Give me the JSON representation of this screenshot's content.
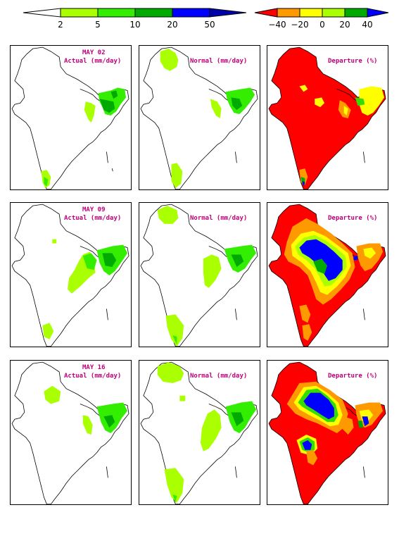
{
  "rainfall_scale": {
    "ticks": [
      "2",
      "5",
      "10",
      "20",
      "50"
    ],
    "colors": [
      "#ffffff",
      "#aaff00",
      "#33ee00",
      "#00aa00",
      "#0000ff",
      "#0000aa"
    ]
  },
  "departure_scale": {
    "ticks": [
      "−40",
      "−20",
      "0",
      "20",
      "40"
    ],
    "colors": [
      "#ff0000",
      "#ff9900",
      "#ffff00",
      "#aaff00",
      "#33dd00",
      "#00aa00",
      "#0000ff"
    ]
  },
  "rows": [
    {
      "date": "MAY 02",
      "actual_label": "Actual (mm/day)",
      "normal_label": "Normal (mm/day)",
      "departure_label": "Departure (%)"
    },
    {
      "date": "MAY 09",
      "actual_label": "Actual (mm/day)",
      "normal_label": "Normal (mm/day)",
      "departure_label": "Departure (%)"
    },
    {
      "date": "MAY 16",
      "actual_label": "Actual (mm/day)",
      "normal_label": "Normal (mm/day)",
      "departure_label": "Departure (%)"
    }
  ]
}
